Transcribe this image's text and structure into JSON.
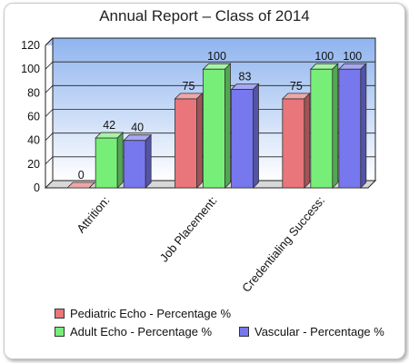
{
  "chart_data": {
    "type": "bar",
    "title": "Annual Report – Class of 2014",
    "categories": [
      "Attrition:",
      "Job Placement:",
      "Credentialing Success:"
    ],
    "series": [
      {
        "name": "Pediatric Echo - Percentage %",
        "values": [
          0,
          75,
          75
        ],
        "color": "#e8767a"
      },
      {
        "name": "Adult Echo - Percentage %",
        "values": [
          42,
          100,
          100
        ],
        "color": "#77ee77"
      },
      {
        "name": "Vascular - Percentage %",
        "values": [
          40,
          83,
          100
        ],
        "color": "#7777ee"
      }
    ],
    "ylim": [
      0,
      120
    ],
    "yticks": [
      0,
      20,
      40,
      60,
      80,
      100,
      120
    ],
    "grid": true,
    "legend_position": "bottom"
  }
}
